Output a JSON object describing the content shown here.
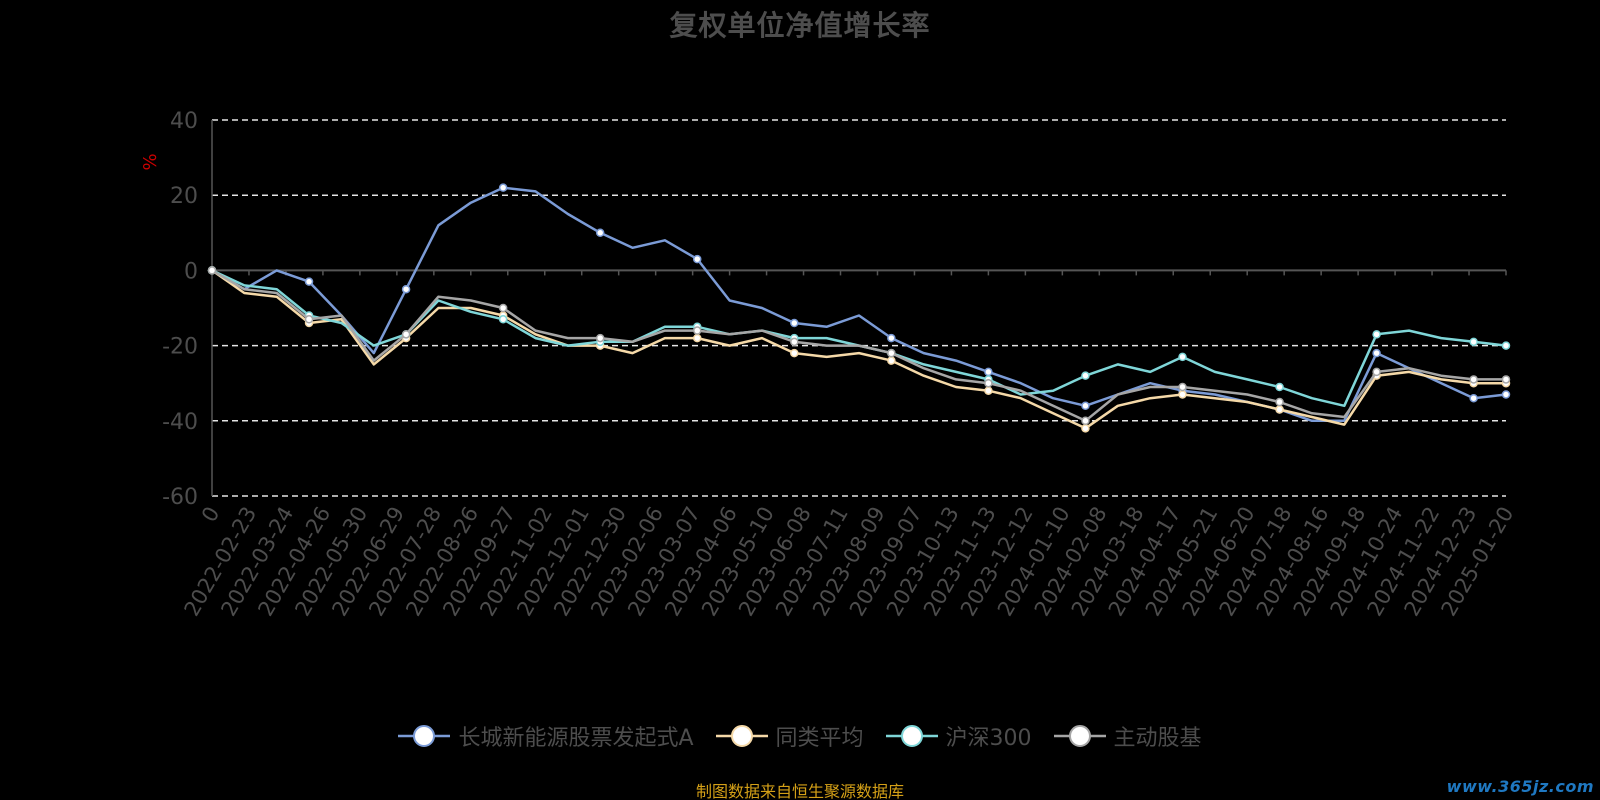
{
  "chart_data": {
    "type": "line",
    "title": "复权单位净值增长率",
    "ylabel": "%",
    "ylim": [
      -60,
      40
    ],
    "yticks": [
      -60,
      -40,
      -20,
      0,
      20,
      40
    ],
    "grid": true,
    "legend_position": "bottom",
    "x_tick_labels": [
      "0",
      "2022-02-23",
      "2022-03-24",
      "2022-04-26",
      "2022-05-30",
      "2022-06-29",
      "2022-07-28",
      "2022-08-26",
      "2022-09-27",
      "2022-11-02",
      "2022-12-01",
      "2022-12-30",
      "2023-02-06",
      "2023-03-07",
      "2023-04-06",
      "2023-05-10",
      "2023-06-08",
      "2023-07-11",
      "2023-08-09",
      "2023-09-07",
      "2023-10-13",
      "2023-11-13",
      "2023-12-12",
      "2024-01-10",
      "2024-02-08",
      "2024-03-18",
      "2024-04-17",
      "2024-05-21",
      "2024-06-20",
      "2024-07-18",
      "2024-08-16",
      "2024-09-18",
      "2024-10-24",
      "2024-11-22",
      "2024-12-23",
      "2025-01-20"
    ],
    "series": [
      {
        "name": "长城新能源股票发起式A",
        "color": "#7b9bd6",
        "values": [
          0,
          -5,
          0,
          -3,
          -12,
          -22,
          -5,
          12,
          18,
          22,
          21,
          15,
          10,
          6,
          8,
          3,
          -8,
          -10,
          -14,
          -15,
          -12,
          -18,
          -22,
          -24,
          -27,
          -30,
          -34,
          -36,
          -33,
          -30,
          -32,
          -33,
          -35,
          -37,
          -40,
          -40,
          -22,
          -26,
          -30,
          -34,
          -33
        ]
      },
      {
        "name": "同类平均",
        "color": "#f5d9a8",
        "values": [
          0,
          -6,
          -7,
          -14,
          -13,
          -25,
          -18,
          -10,
          -10,
          -12,
          -17,
          -20,
          -20,
          -22,
          -18,
          -18,
          -20,
          -18,
          -22,
          -23,
          -22,
          -24,
          -28,
          -31,
          -32,
          -34,
          -38,
          -42,
          -36,
          -34,
          -33,
          -34,
          -35,
          -37,
          -39,
          -41,
          -28,
          -27,
          -29,
          -30,
          -30
        ]
      },
      {
        "name": "沪深300",
        "color": "#7fd6d8",
        "values": [
          0,
          -4,
          -5,
          -12,
          -14,
          -20,
          -17,
          -8,
          -11,
          -13,
          -18,
          -20,
          -19,
          -19,
          -15,
          -15,
          -17,
          -16,
          -18,
          -18,
          -20,
          -22,
          -25,
          -27,
          -29,
          -33,
          -32,
          -28,
          -25,
          -27,
          -23,
          -27,
          -29,
          -31,
          -34,
          -36,
          -17,
          -16,
          -18,
          -19,
          -20
        ]
      },
      {
        "name": "主动股基",
        "color": "#a6a6a6",
        "values": [
          0,
          -5,
          -6,
          -13,
          -12,
          -24,
          -17,
          -7,
          -8,
          -10,
          -16,
          -18,
          -18,
          -19,
          -16,
          -16,
          -17,
          -16,
          -19,
          -20,
          -20,
          -22,
          -26,
          -29,
          -30,
          -32,
          -36,
          -40,
          -33,
          -31,
          -31,
          -32,
          -33,
          -35,
          -38,
          -39,
          -27,
          -26,
          -28,
          -29,
          -29
        ]
      }
    ]
  },
  "footer": {
    "source_note": "制图数据来自恒生聚源数据库",
    "watermark": "www.365jz.com"
  }
}
